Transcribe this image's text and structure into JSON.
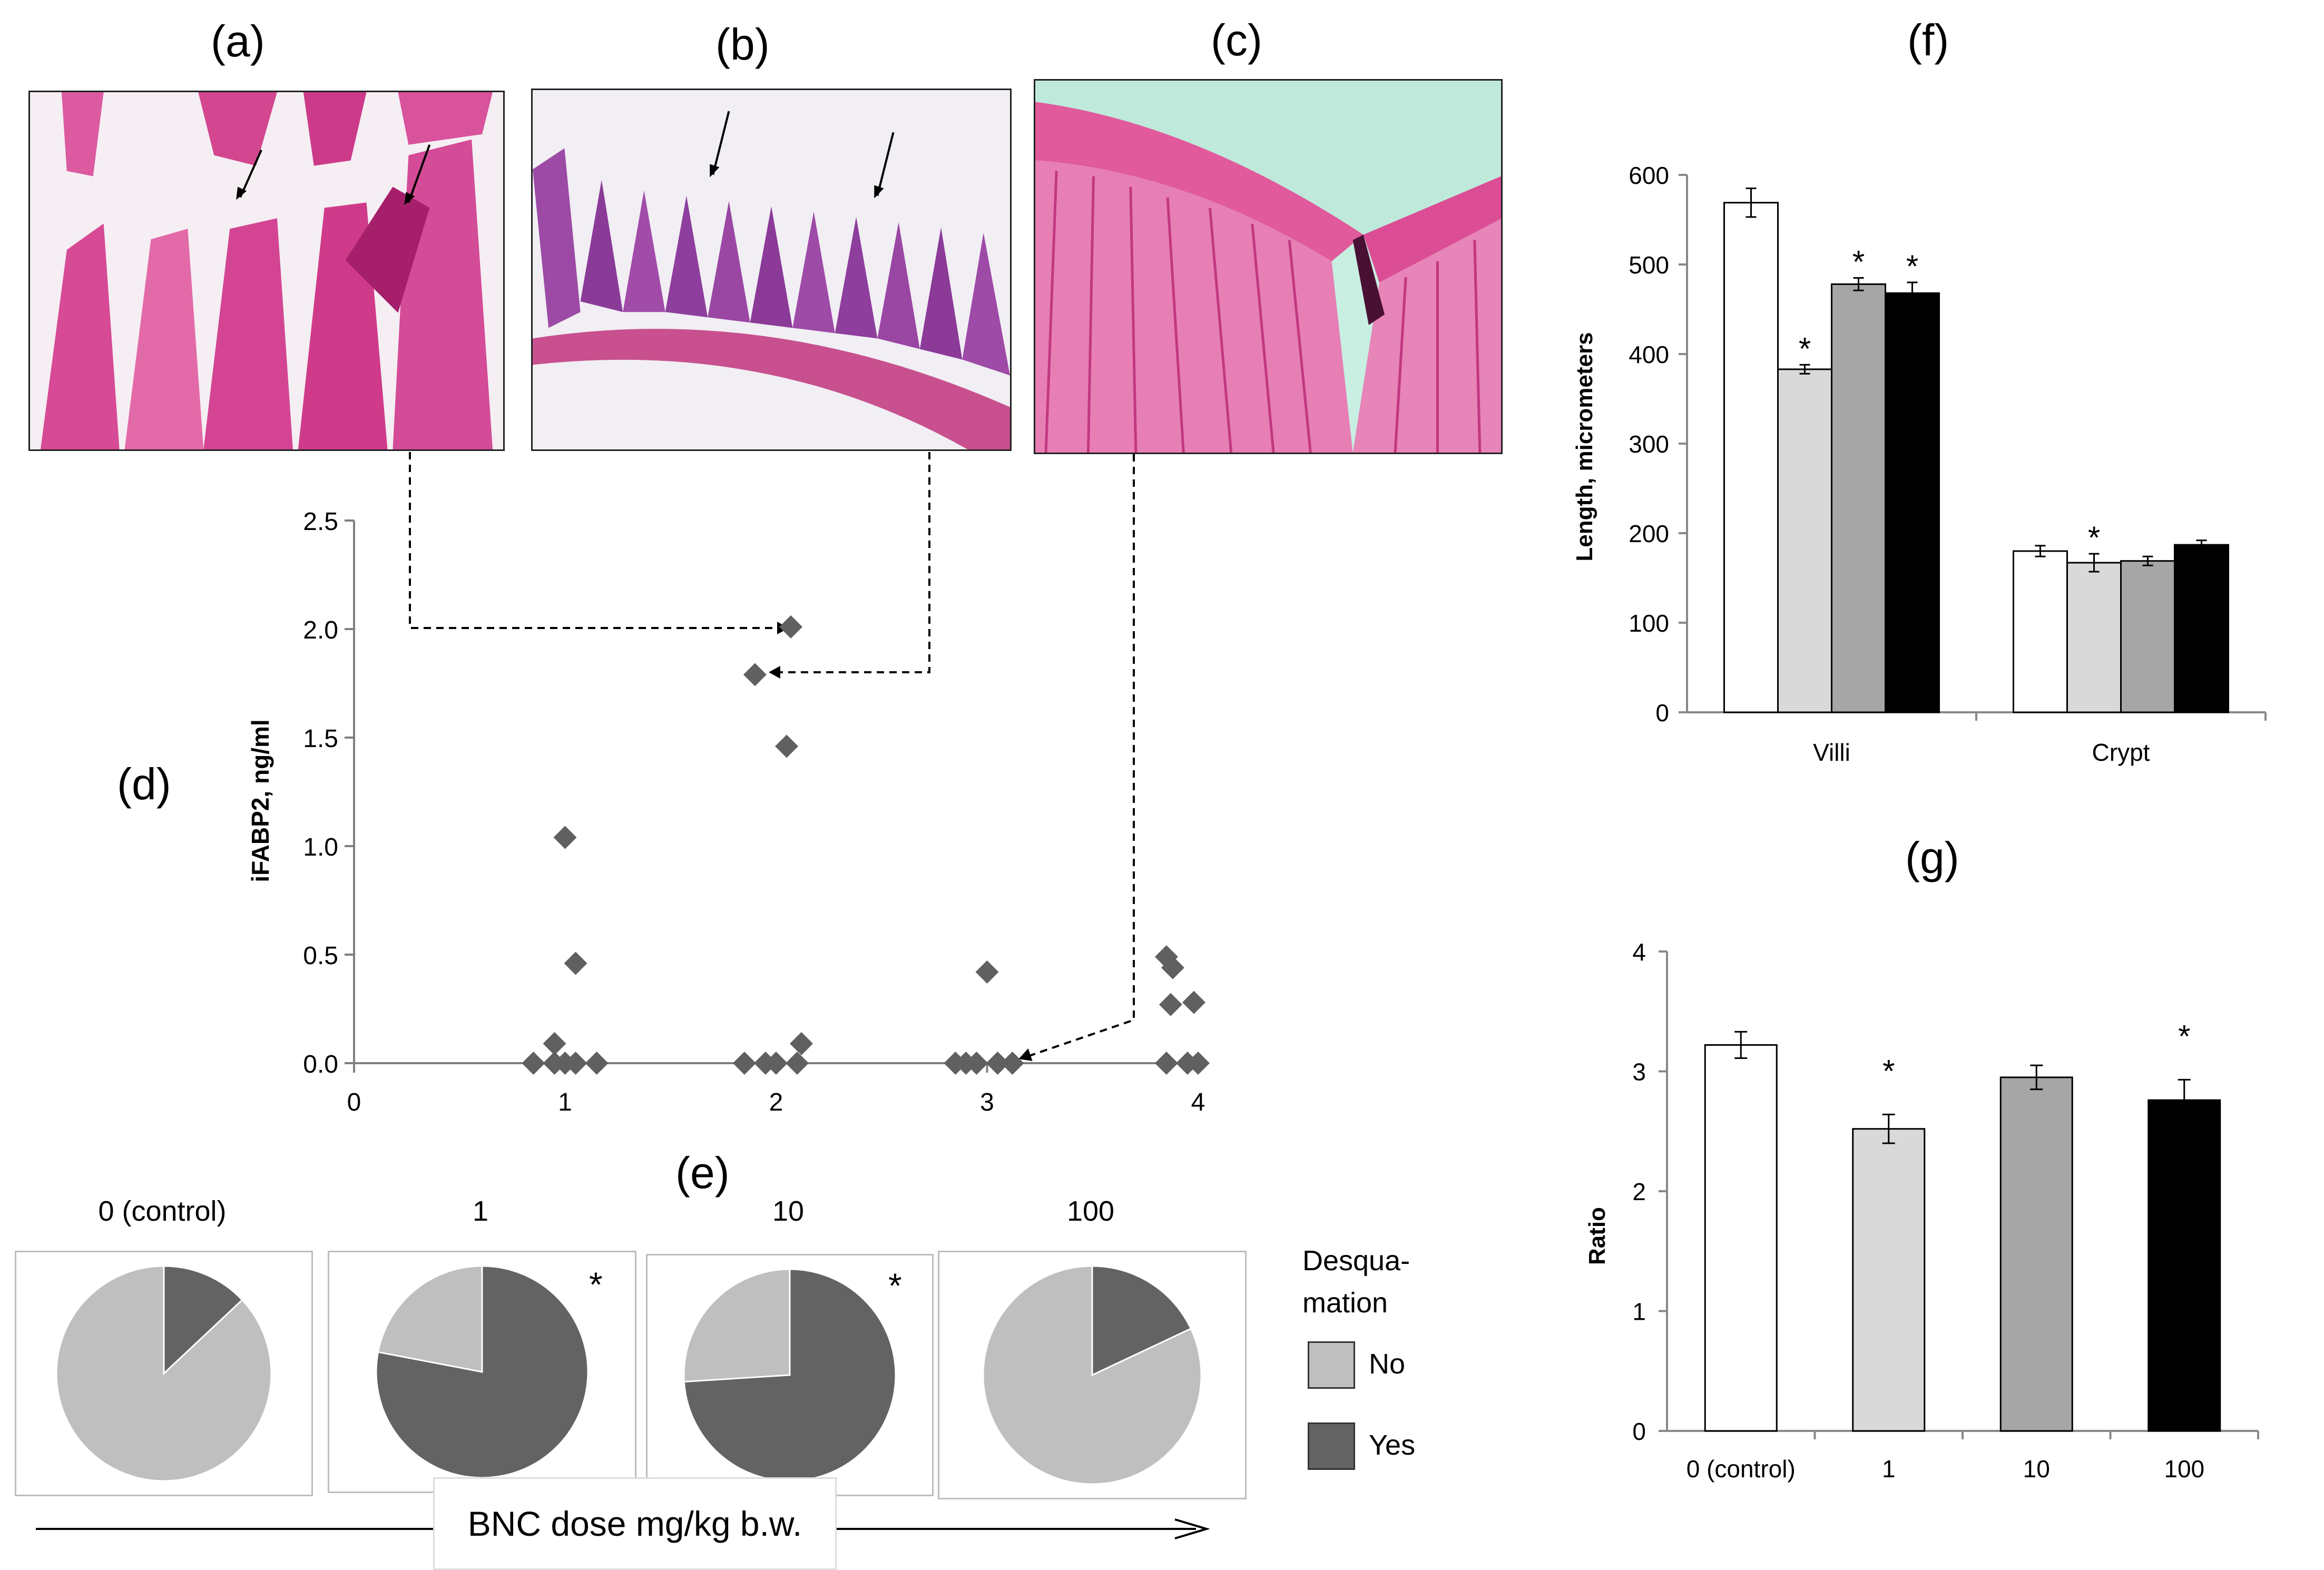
{
  "panel_labels": {
    "a": "(a)",
    "b": "(b)",
    "c": "(c)",
    "d": "(d)",
    "e": "(e)",
    "f": "(f)",
    "g": "(g)"
  },
  "colors": {
    "control": "#ffffff",
    "dose1": "#d9d9d9",
    "dose10": "#a6a6a6",
    "dose100": "#000000",
    "scatter": "#606060",
    "pie_no": "#bfbfbf",
    "pie_yes": "#636363",
    "tissue_pink": "#d9428e",
    "tissue_purple": "#8e3c9a",
    "bg_light": "#f7f2f6"
  },
  "chart_data": [
    {
      "id": "d",
      "type": "scatter",
      "xlabel": "",
      "ylabel": "iFABP2, ng/ml",
      "xlim": [
        0,
        4
      ],
      "ylim": [
        0,
        2.5
      ],
      "xticks": [
        "0",
        "1",
        "2",
        "3",
        "4"
      ],
      "yticks": [
        "0.0",
        "0.5",
        "1.0",
        "1.5",
        "2.0",
        "2.5"
      ],
      "points": [
        {
          "x": 0.85,
          "y": 0
        },
        {
          "x": 0.95,
          "y": 0
        },
        {
          "x": 0.95,
          "y": 0.09
        },
        {
          "x": 1.0,
          "y": 0.0
        },
        {
          "x": 1.0,
          "y": 1.04
        },
        {
          "x": 1.05,
          "y": 0
        },
        {
          "x": 1.05,
          "y": 0.46
        },
        {
          "x": 1.15,
          "y": 0
        },
        {
          "x": 1.85,
          "y": 0
        },
        {
          "x": 1.9,
          "y": 1.79
        },
        {
          "x": 1.95,
          "y": 0
        },
        {
          "x": 2.0,
          "y": 0
        },
        {
          "x": 2.05,
          "y": 1.46
        },
        {
          "x": 2.07,
          "y": 2.01
        },
        {
          "x": 2.1,
          "y": 0
        },
        {
          "x": 2.12,
          "y": 0.09
        },
        {
          "x": 2.85,
          "y": 0
        },
        {
          "x": 2.9,
          "y": 0
        },
        {
          "x": 2.95,
          "y": 0
        },
        {
          "x": 3.0,
          "y": 0.42
        },
        {
          "x": 3.05,
          "y": 0
        },
        {
          "x": 3.12,
          "y": 0
        },
        {
          "x": 3.85,
          "y": 0.49
        },
        {
          "x": 3.88,
          "y": 0.44
        },
        {
          "x": 3.87,
          "y": 0.27
        },
        {
          "x": 3.85,
          "y": 0
        },
        {
          "x": 3.95,
          "y": 0
        },
        {
          "x": 3.98,
          "y": 0.28
        },
        {
          "x": 4.0,
          "y": 0
        }
      ]
    },
    {
      "id": "e",
      "type": "pie",
      "series_names": [
        "No",
        "Yes"
      ],
      "legend_title_lines": [
        "Desqua-",
        "mation"
      ],
      "pies": [
        {
          "label": "0 (control)",
          "no": 87,
          "yes": 13,
          "star": ""
        },
        {
          "label": "1",
          "no": 22,
          "yes": 78,
          "star": "*"
        },
        {
          "label": "10",
          "no": 26,
          "yes": 74,
          "star": "*"
        },
        {
          "label": "100",
          "no": 82,
          "yes": 18,
          "star": ""
        }
      ],
      "xlabel": "BNC dose mg/kg b.w."
    },
    {
      "id": "f",
      "type": "bar",
      "categories": [
        "Villi",
        "Crypt"
      ],
      "ylabel": "Length, micrometers",
      "ylim": [
        0,
        600
      ],
      "yticks": [
        "0",
        "100",
        "200",
        "300",
        "400",
        "500",
        "600"
      ],
      "series": [
        {
          "name": "0 (control)",
          "values": [
            569,
            180
          ],
          "errors": [
            16,
            6
          ],
          "stars": [
            "",
            ""
          ]
        },
        {
          "name": "1",
          "values": [
            383,
            167
          ],
          "errors": [
            5,
            10
          ],
          "stars": [
            "*",
            "*"
          ]
        },
        {
          "name": "10",
          "values": [
            478,
            169
          ],
          "errors": [
            7,
            5
          ],
          "stars": [
            "*",
            ""
          ]
        },
        {
          "name": "100",
          "values": [
            468,
            187
          ],
          "errors": [
            12,
            5
          ],
          "stars": [
            "*",
            ""
          ]
        }
      ]
    },
    {
      "id": "g",
      "type": "bar",
      "categories": [
        "0 (control)",
        "1",
        "10",
        "100"
      ],
      "ylabel": "Ratio",
      "ylim": [
        0,
        4
      ],
      "yticks": [
        "0",
        "1",
        "2",
        "3",
        "4"
      ],
      "values": [
        3.22,
        2.52,
        2.95,
        2.76
      ],
      "errors": [
        0.11,
        0.12,
        0.1,
        0.17
      ],
      "stars": [
        "",
        "*",
        "",
        "*"
      ]
    }
  ]
}
